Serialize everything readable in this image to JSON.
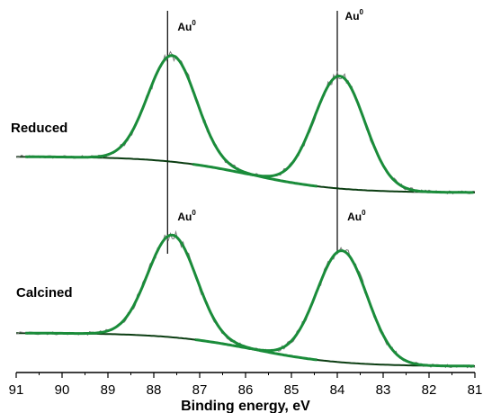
{
  "chart_data": {
    "type": "line",
    "xlabel": "Binding energy, eV",
    "x_reversed": true,
    "xlim": [
      91,
      81
    ],
    "xticks": [
      91,
      90,
      89,
      88,
      87,
      86,
      85,
      84,
      83,
      82,
      81
    ],
    "grid": false,
    "legend": "none",
    "reference_lines": [
      87.7,
      84.0
    ],
    "spectra": [
      {
        "label": "Reduced",
        "peak_label": "Au",
        "peak_label_sup": "0",
        "fit_color": "#1a8c3a",
        "background_color": "#0b3d12",
        "peaks": [
          {
            "center": 87.6,
            "fwhm": 1.25,
            "height": 1.0
          },
          {
            "center": 83.95,
            "fwhm": 1.3,
            "height": 1.06
          }
        ],
        "background": {
          "high_level": 0.0,
          "low_level": -0.34,
          "step_center": 85.9,
          "step_width": 0.95
        }
      },
      {
        "label": "Calcined",
        "peak_label": "Au",
        "peak_label_sup": "0",
        "fit_color": "#1a8c3a",
        "background_color": "#0b3d12",
        "peaks": [
          {
            "center": 87.6,
            "fwhm": 1.25,
            "height": 0.98
          },
          {
            "center": 83.9,
            "fwhm": 1.3,
            "height": 1.07
          }
        ],
        "background": {
          "high_level": 0.0,
          "low_level": -0.32,
          "step_center": 85.8,
          "step_width": 0.95
        }
      }
    ]
  }
}
